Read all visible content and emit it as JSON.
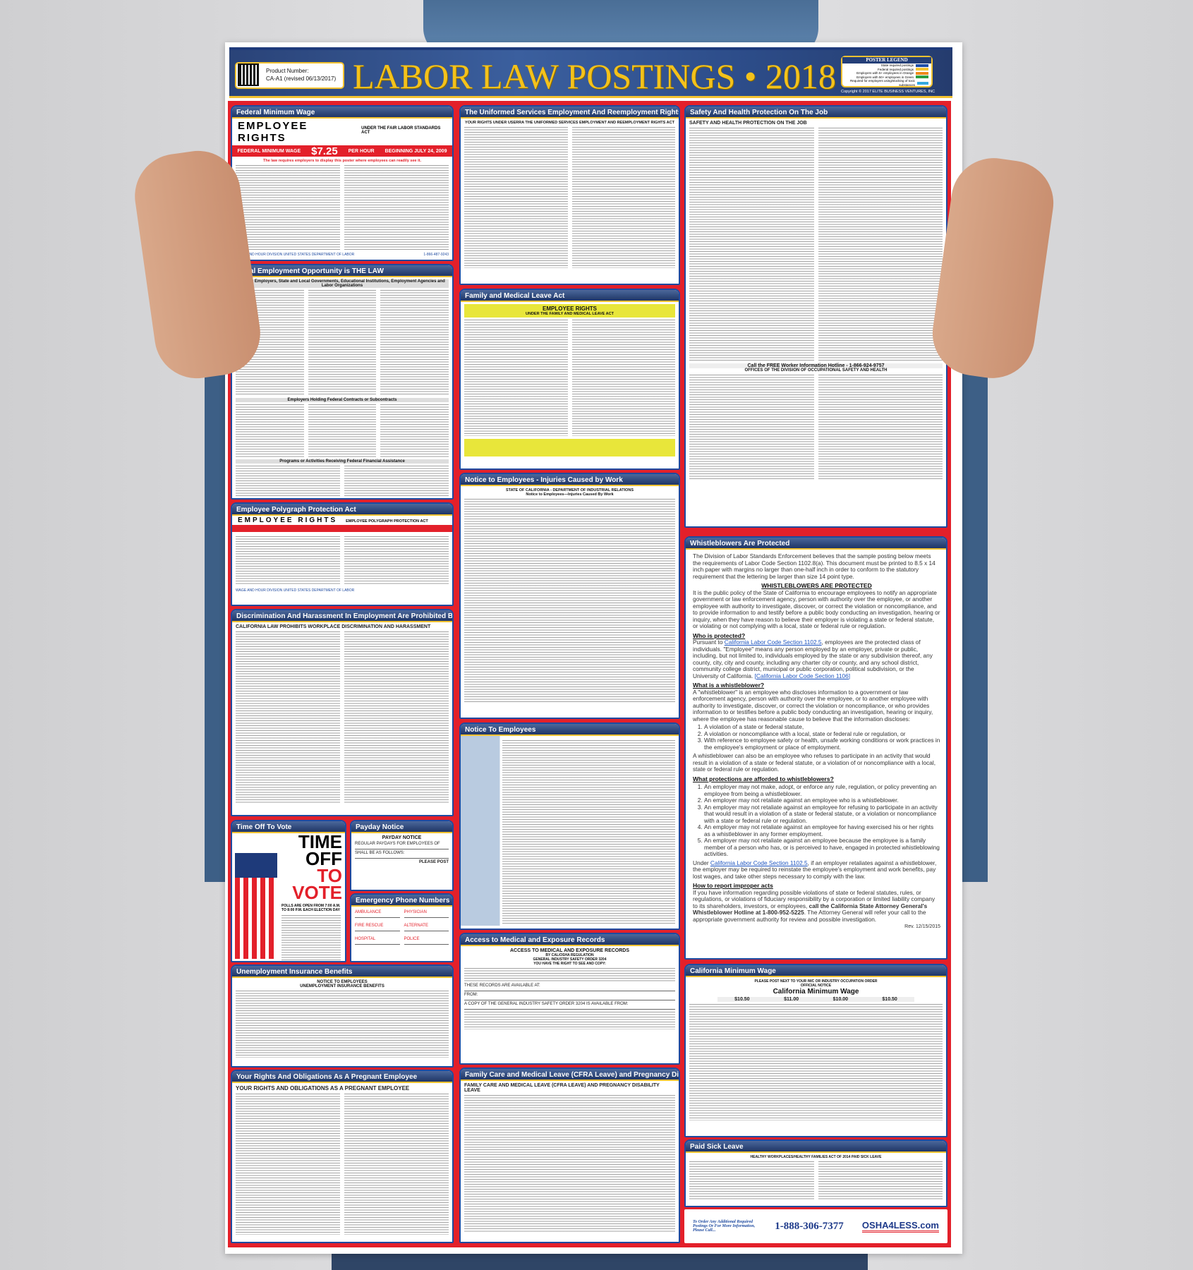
{
  "header": {
    "title": "LABOR LAW POSTINGS • 2018",
    "product_label": "Product Number:",
    "product_number": "CA-A1 (revised 06/13/2017)",
    "copyright": "Copyright © 2017 ELITE BUSINESS VENTURES, INC",
    "legend": {
      "title": "POSTER LEGEND",
      "items": [
        {
          "label": "State required postings",
          "color": "#1f4fa8"
        },
        {
          "label": "Federal required postings",
          "color": "#f2c230"
        },
        {
          "label": "Employers with 5+ employees in Orange",
          "color": "#f08a1c"
        },
        {
          "label": "Employers with 50+ employees in Green",
          "color": "#2e9e3e"
        },
        {
          "label": "Required for employers using/stocking of toxic substances",
          "color": "#35a9e0"
        }
      ]
    }
  },
  "sections": {
    "fmw": {
      "title": "Federal Minimum Wage",
      "h1": "EMPLOYEE RIGHTS",
      "h2": "UNDER THE FAIR LABOR STANDARDS ACT",
      "band_left": "FEDERAL MINIMUM WAGE",
      "wage": "$7.25",
      "per": "PER HOUR",
      "since": "BEGINNING JULY 24, 2009",
      "note": "The law requires employers to display this poster where employees can readily see it.",
      "org": "WAGE AND HOUR DIVISION UNITED STATES DEPARTMENT OF LABOR",
      "phone": "1-866-487-9243"
    },
    "eeo": {
      "title": "Equal Employment Opportunity is THE LAW",
      "sub": "Private Employers, State and Local Governments, Educational Institutions, Employment Agencies and Labor Organizations",
      "sub2": "Employers Holding Federal Contracts or Subcontracts",
      "sub3": "Programs or Activities Receiving Federal Financial Assistance"
    },
    "poly": {
      "title": "Employee Polygraph Protection Act",
      "h1": "EMPLOYEE RIGHTS",
      "h2": "EMPLOYEE POLYGRAPH PROTECTION ACT",
      "org": "WAGE AND HOUR DIVISION UNITED STATES DEPARTMENT OF LABOR"
    },
    "disc": {
      "title": "Discrimination And Harassment In Employment Are Prohibited By Law",
      "h1": "CALIFORNIA LAW PROHIBITS WORKPLACE DISCRIMINATION AND HARASSMENT"
    },
    "vote": {
      "title": "Time Off To Vote",
      "h1": "TIME OFF",
      "h2": "TO VOTE",
      "body": "POLLS ARE OPEN FROM 7:00 A.M. TO 8:00 P.M. EACH ELECTION DAY"
    },
    "payday": {
      "title": "Payday Notice",
      "h1": "PAYDAY NOTICE",
      "l1": "REGULAR PAYDAYS FOR EMPLOYEES OF",
      "l2": "SHALL BE AS FOLLOWS:",
      "l3": "PLEASE POST"
    },
    "emerg": {
      "title": "Emergency Phone Numbers",
      "items": [
        "AMBULANCE",
        "PHYSICIAN",
        "FIRE RESCUE",
        "ALTERNATE",
        "HOSPITAL",
        "POLICE"
      ]
    },
    "ui": {
      "title": "Unemployment Insurance Benefits",
      "h1": "NOTICE TO EMPLOYEES",
      "h2": "UNEMPLOYMENT INSURANCE BENEFITS"
    },
    "preg": {
      "title": "Your Rights And Obligations As A Pregnant Employee",
      "h1": "YOUR RIGHTS AND OBLIGATIONS AS A PREGNANT EMPLOYEE"
    },
    "userra": {
      "title": "The Uniformed Services Employment And Reemployment Rights Act",
      "h1": "YOUR RIGHTS UNDER USERRA THE UNIFORMED SERVICES EMPLOYMENT AND REEMPLOYMENT RIGHTS ACT"
    },
    "fmla": {
      "title": "Family and Medical Leave Act",
      "h1": "EMPLOYEE RIGHTS",
      "h2": "UNDER THE FAMILY AND MEDICAL LEAVE ACT"
    },
    "inj": {
      "title": "Notice to Employees - Injuries Caused by Work",
      "h1": "STATE OF CALIFORNIA - DEPARTMENT OF INDUSTRIAL RELATIONS",
      "h2": "Notice to Employees—Injuries Caused By Work"
    },
    "notice": {
      "title": "Notice To Employees"
    },
    "access": {
      "title": "Access to Medical and Exposure Records",
      "h1": "ACCESS TO MEDICAL AND EXPOSURE RECORDS",
      "h2": "BY CAL/OSHA REGULATION",
      "h3": "GENERAL INDUSTRY SAFETY ORDER 3204",
      "h4": "YOU HAVE THE RIGHT TO SEE AND COPY:",
      "f1": "THESE RECORDS ARE AVAILABLE AT:",
      "f2": "FROM:",
      "f3": "A COPY OF THE GENERAL INDUSTRY SAFETY ORDER 3204 IS AVAILABLE FROM:"
    },
    "cfra": {
      "title": "Family Care and Medical Leave (CFRA Leave) and Pregnancy Disability Leave",
      "h1": "FAMILY CARE AND MEDICAL LEAVE (CFRA LEAVE) AND PREGNANCY DISABILITY LEAVE"
    },
    "safety": {
      "title": "Safety And Health Protection On The Job",
      "h1": "SAFETY AND HEALTH PROTECTION ON THE JOB",
      "hotline": "Call the FREE Worker Information Hotline - 1-866-924-9757",
      "offices": "OFFICES OF THE DIVISION OF OCCUPATIONAL SAFETY AND HEALTH"
    },
    "whistle": {
      "title": "Whistleblowers Are Protected",
      "intro": "The Division of Labor Standards Enforcement believes that the sample posting below meets the requirements of Labor Code Section 1102.8(a). This document must be printed to 8.5 x 14 inch paper with margins no larger than one-half inch in order to conform to the statutory requirement that the lettering be larger than size 14 point type.",
      "heading": "WHISTLEBLOWERS ARE PROTECTED",
      "policy": "It is the public policy of the State of California to encourage employees to notify an appropriate government or law enforcement agency, person with authority over the employee, or another employee with authority to investigate, discover, or correct the violation or noncompliance, and to provide information to and testify before a public body conducting an investigation, hearing or inquiry, when they have reason to believe their employer is violating a state or federal statute, or violating or not complying with a local, state or federal rule or regulation.",
      "q1": "Who is protected?",
      "a1_pre": "Pursuant to ",
      "a1_link": "California Labor Code Section 1102.5",
      "a1": ", employees are the protected class of individuals. \"Employee\" means any person employed by an employer, private or public, including, but not limited to, individuals employed by the state or any subdivision thereof, any county, city, city and county, including any charter city or county, and any school district, community college district, municipal or public corporation, political subdivision, or the University of California. ",
      "a1_link2": "[California Labor Code Section 1106]",
      "q2": "What is a whistleblower?",
      "a2": "A \"whistleblower\" is an employee who discloses information to a government or law enforcement agency, person with authority over the employee, or to another employee with authority to investigate, discover, or correct the violation or noncompliance, or who provides information to or testifies before a public body conducting an investigation, hearing or inquiry, where the employee has reasonable cause to believe that the information discloses:",
      "a2_list": [
        "A violation of a state or federal statute,",
        "A violation or noncompliance with a local, state or federal rule or regulation, or",
        "With reference to employee safety or health, unsafe working conditions or work practices in the employee's employment or place of employment."
      ],
      "a2b": "A whistleblower can also be an employee who refuses to participate in an activity that would result in a violation of a state or federal statute, or a violation of or noncompliance with a local, state or federal rule or regulation.",
      "q3": "What protections are afforded to whistleblowers?",
      "a3_list": [
        "An employer may not make, adopt, or enforce any rule, regulation, or policy preventing an employee from being a whistleblower.",
        "An employer may not retaliate against an employee who is a whistleblower.",
        "An employer may not retaliate against an employee for refusing to participate in an activity that would result in a violation of a state or federal statute, or a violation or noncompliance with a state or federal rule or regulation.",
        "An employer may not retaliate against an employee for having exercised his or her rights as a whistleblower in any former employment.",
        "An employer may not retaliate against an employee because the employee is a family member of a person who has, or is perceived to have, engaged in protected whistleblowing activities."
      ],
      "a3b_pre": "Under ",
      "a3b_link": "California Labor Code Section 1102.5",
      "a3b": ", if an employer retaliates against a whistleblower, the employer may be required to reinstate the employee's employment and work benefits, pay lost wages, and take other steps necessary to comply with the law.",
      "q4": "How to report improper acts",
      "a4": "If you have information regarding possible violations of state or federal statutes, rules, or regulations, or violations of fiduciary responsibility by a corporation or limited liability company to its shareholders, investors, or employees, ",
      "a4_bold": "call the California State Attorney General's Whistleblower Hotline at 1-800-952-5225",
      "a4b": ". The Attorney General will refer your call to the appropriate government authority for review and possible investigation.",
      "rev": "Rev. 12/15/2015"
    },
    "cawage": {
      "title": "California Minimum Wage",
      "h1": "PLEASE POST NEXT TO YOUR IWC OR INDUSTRY OCCUPATION ORDER",
      "h2": "OFFICIAL NOTICE",
      "h3": "California Minimum Wage",
      "rates": [
        "$10.50",
        "$11.00",
        "$10.00",
        "$10.50"
      ]
    },
    "sick": {
      "title": "Paid Sick Leave",
      "h1": "HEALTHY WORKPLACES/HEALTHY FAMILIES ACT OF 2014 PAID SICK LEAVE"
    }
  },
  "footer": {
    "order_text": "To Order Any Additional Required Postings Or For More Information, Please Call...",
    "phone": "1-888-306-7377",
    "brand": "OSHA4LESS.com"
  }
}
